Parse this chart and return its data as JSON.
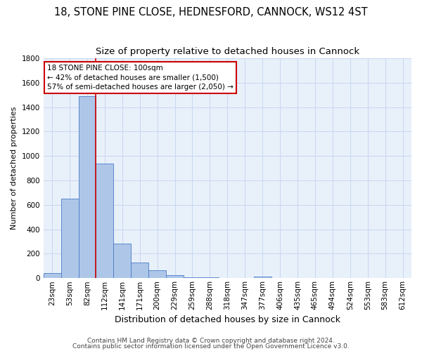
{
  "title": "18, STONE PINE CLOSE, HEDNESFORD, CANNOCK, WS12 4ST",
  "subtitle": "Size of property relative to detached houses in Cannock",
  "xlabel": "Distribution of detached houses by size in Cannock",
  "ylabel": "Number of detached properties",
  "categories": [
    "23sqm",
    "53sqm",
    "82sqm",
    "112sqm",
    "141sqm",
    "171sqm",
    "200sqm",
    "229sqm",
    "259sqm",
    "288sqm",
    "318sqm",
    "347sqm",
    "377sqm",
    "406sqm",
    "435sqm",
    "465sqm",
    "494sqm",
    "524sqm",
    "553sqm",
    "583sqm",
    "612sqm"
  ],
  "values": [
    40,
    650,
    1490,
    940,
    285,
    130,
    62,
    22,
    10,
    5,
    3,
    2,
    15,
    0,
    0,
    0,
    0,
    0,
    0,
    0,
    0
  ],
  "bar_color": "#aec6e8",
  "bar_edge_color": "#4a7cc7",
  "bg_color": "#e8f0fa",
  "grid_color": "#c8d8f0",
  "vline_x_index": 2,
  "vline_color": "#cc0000",
  "annotation_line1": "18 STONE PINE CLOSE: 100sqm",
  "annotation_line2": "← 42% of detached houses are smaller (1,500)",
  "annotation_line3": "57% of semi-detached houses are larger (2,050) →",
  "annotation_box_color": "#ffffff",
  "annotation_box_edge": "#cc0000",
  "footer_line1": "Contains HM Land Registry data © Crown copyright and database right 2024.",
  "footer_line2": "Contains public sector information licensed under the Open Government Licence v3.0.",
  "ylim": [
    0,
    1800
  ],
  "yticks": [
    0,
    200,
    400,
    600,
    800,
    1000,
    1200,
    1400,
    1600,
    1800
  ],
  "title_fontsize": 10.5,
  "subtitle_fontsize": 9.5,
  "xlabel_fontsize": 9,
  "ylabel_fontsize": 8,
  "tick_fontsize": 7.5,
  "annotation_fontsize": 7.5,
  "footer_fontsize": 6.5
}
